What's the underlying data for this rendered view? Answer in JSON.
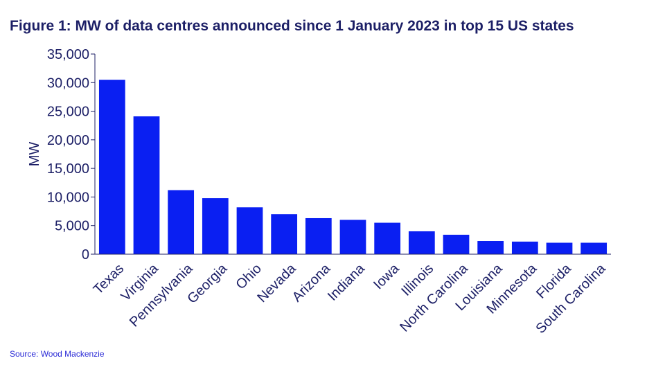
{
  "title": "Figure 1: MW of data centres announced since 1 January 2023 in top 15 US states",
  "source": "Source: Wood Mackenzie",
  "colors": {
    "bar": "#0a1ff2",
    "axis": "#1c1f66",
    "text": "#1c1f66",
    "source": "#2b2bd6"
  },
  "chart_data": {
    "type": "bar",
    "title": "Figure 1: MW of data centres announced since 1 January 2023 in top 15 US states",
    "xlabel": "",
    "ylabel": "MW",
    "ylim": [
      0,
      35000
    ],
    "yticks": [
      0,
      5000,
      10000,
      15000,
      20000,
      25000,
      30000,
      35000
    ],
    "ytick_labels": [
      "0",
      "5,000",
      "10,000",
      "15,000",
      "20,000",
      "25,000",
      "30,000",
      "35,000"
    ],
    "grid": false,
    "legend": "none",
    "categories": [
      "Texas",
      "Virginia",
      "Pennsylvania",
      "Georgia",
      "Ohio",
      "Nevada",
      "Arizona",
      "Indiana",
      "Iowa",
      "Illinois",
      "North Carolina",
      "Louisiana",
      "Minnesota",
      "Florida",
      "South Carolina"
    ],
    "values": [
      30500,
      24100,
      11200,
      9800,
      8200,
      7000,
      6300,
      6000,
      5500,
      4000,
      3400,
      2300,
      2200,
      2000,
      2000
    ]
  }
}
